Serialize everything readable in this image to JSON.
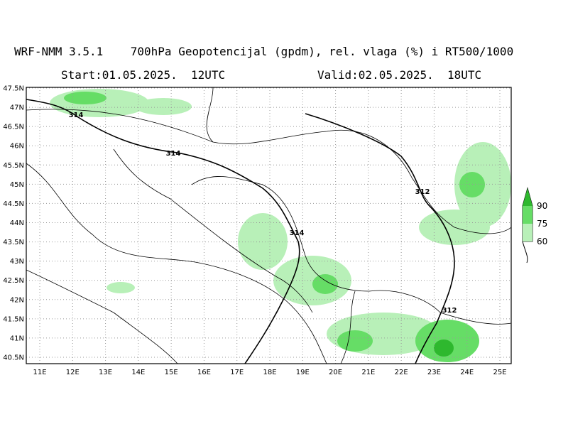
{
  "header": {
    "title": "WRF-NMM 3.5.1    700hPa Geopotencijal (gpdm), rel. vlaga (%) i RT500/1000",
    "start": "Start:01.05.2025.  12UTC",
    "valid": "Valid:02.05.2025.  18UTC"
  },
  "map": {
    "lat_labels": [
      "47.5N",
      "47N",
      "46.5N",
      "46N",
      "45.5N",
      "45N",
      "44.5N",
      "44N",
      "43.5N",
      "43N",
      "42.5N",
      "42N",
      "41.5N",
      "41N",
      "40.5N"
    ],
    "lon_labels": [
      "11E",
      "12E",
      "13E",
      "14E",
      "15E",
      "16E",
      "17E",
      "18E",
      "19E",
      "20E",
      "21E",
      "22E",
      "23E",
      "24E",
      "25E"
    ],
    "contour_labels": [
      "314",
      "314",
      "314",
      "312",
      "312"
    ]
  },
  "legend": {
    "labels": [
      "90",
      "75",
      "60"
    ]
  }
}
